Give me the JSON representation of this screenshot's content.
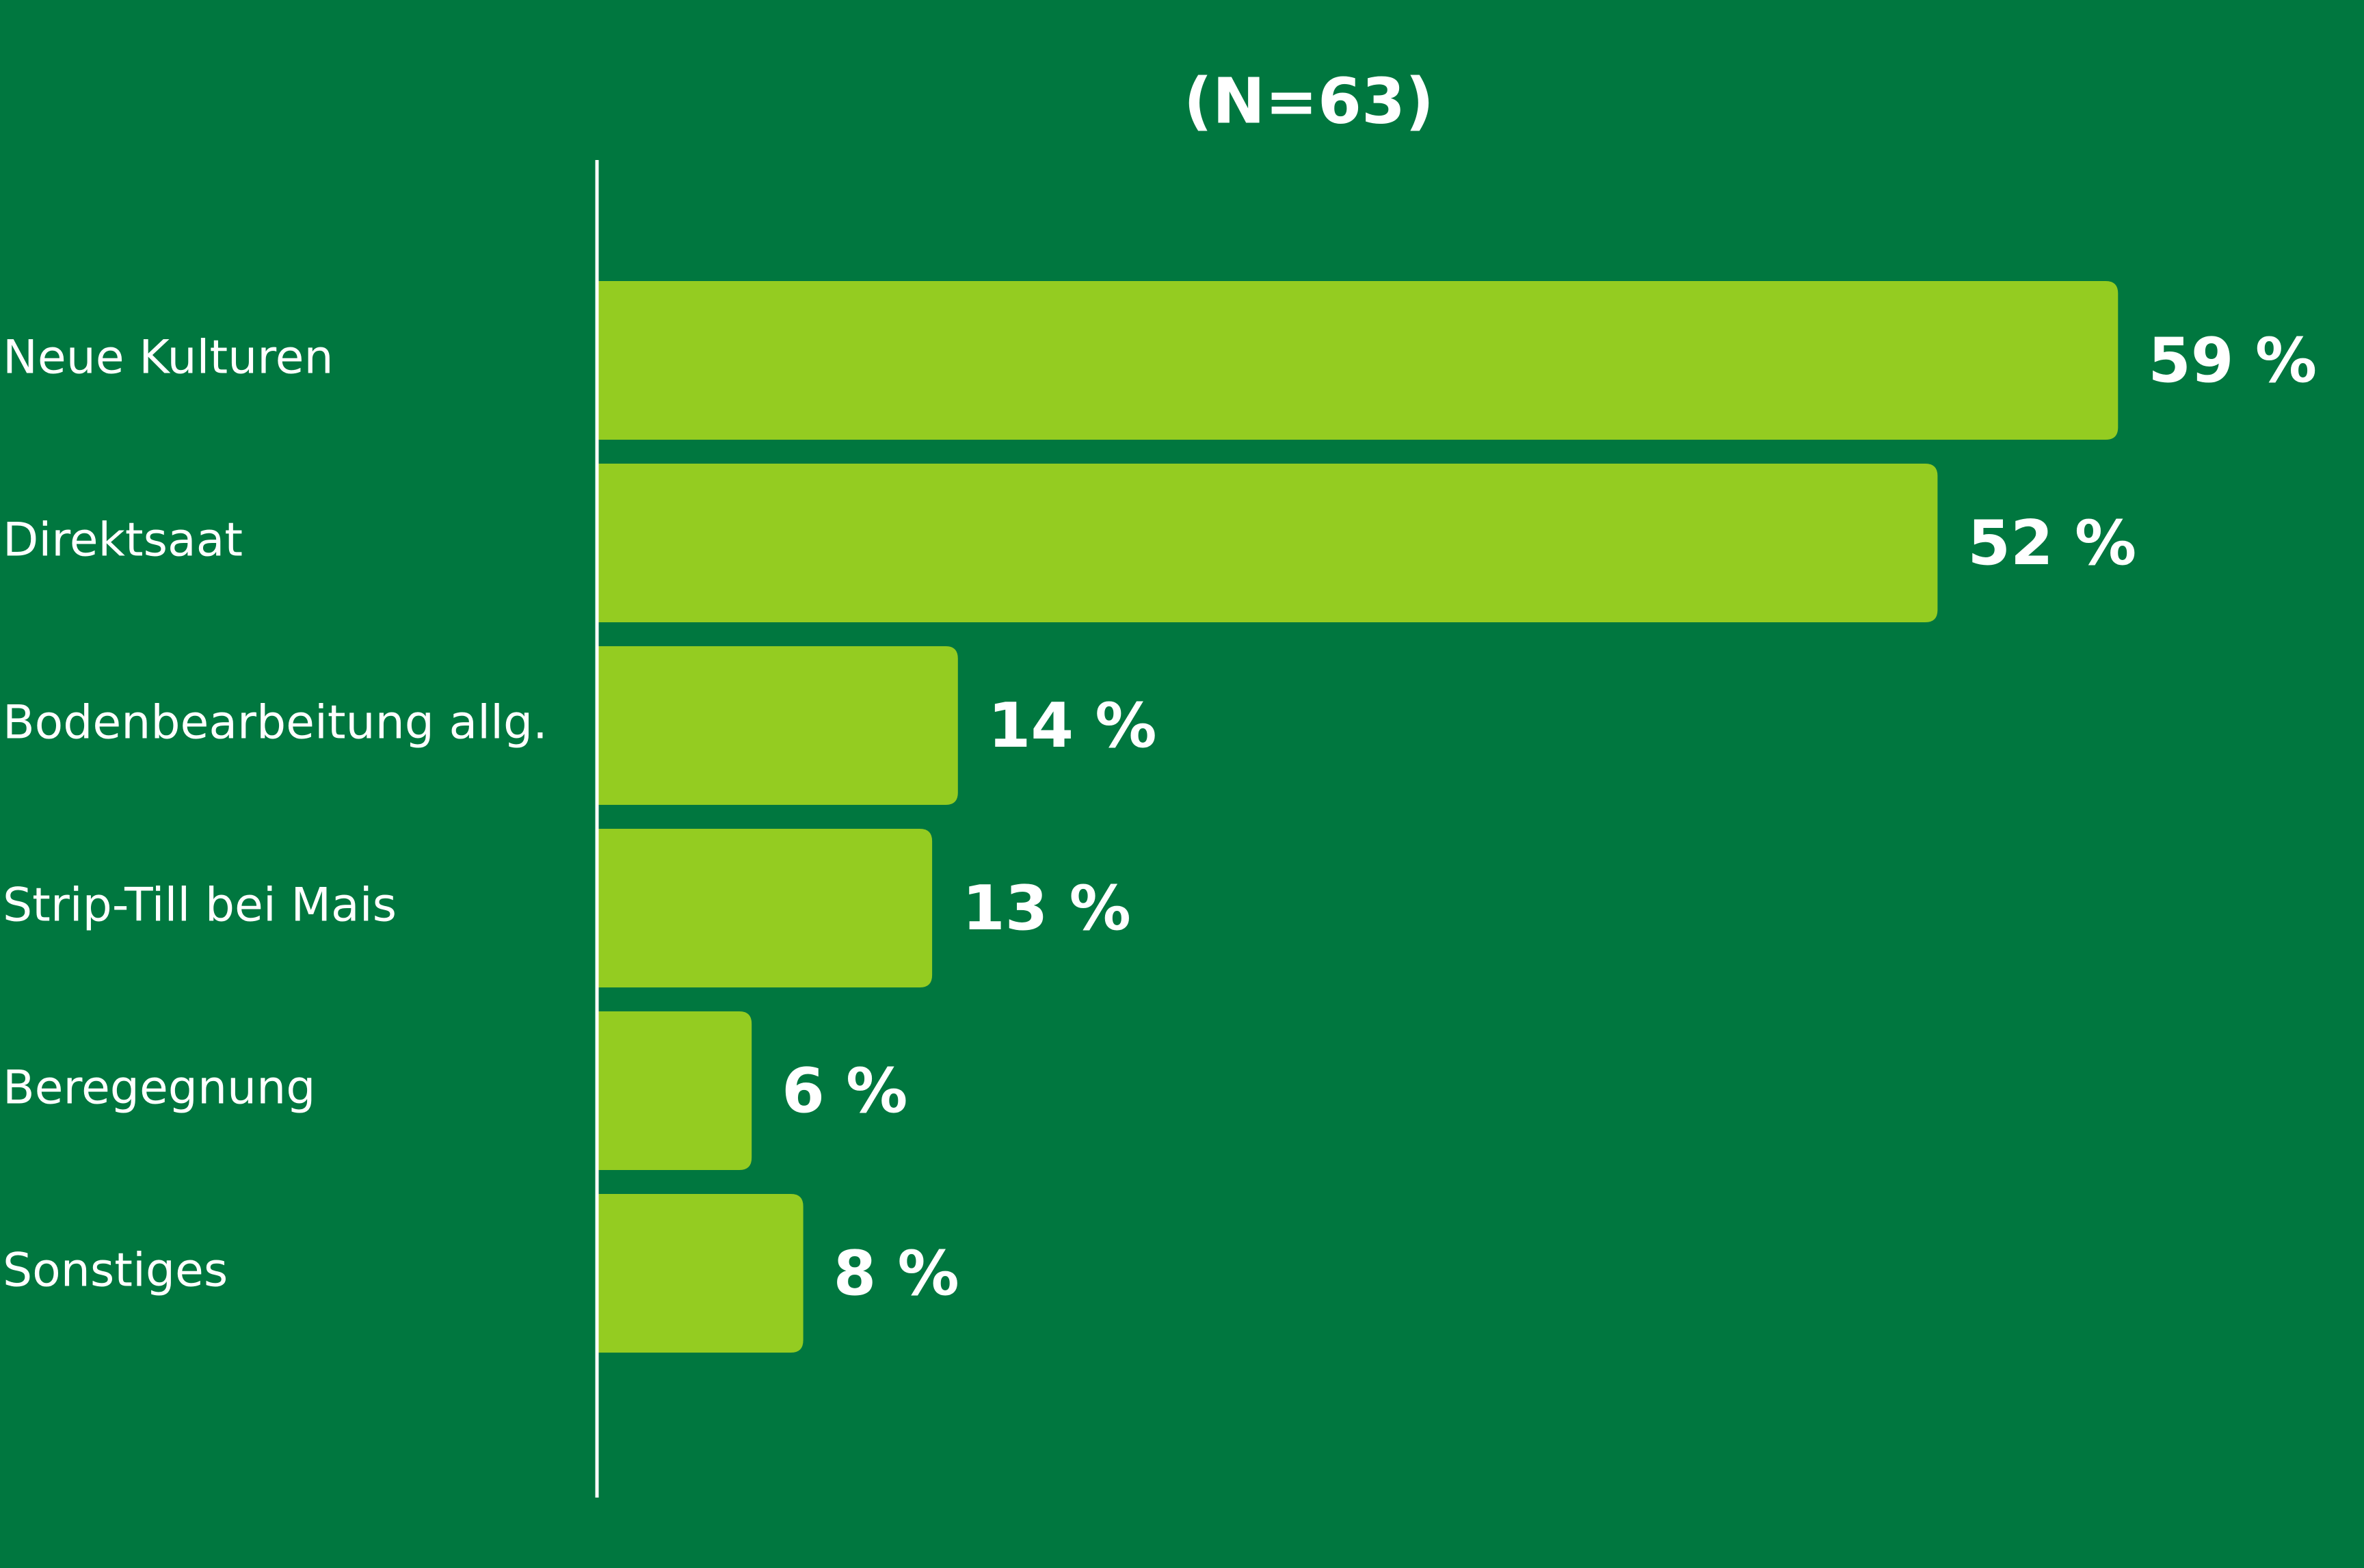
{
  "chart_data": {
    "type": "bar",
    "orientation": "horizontal",
    "title": "(N=63)",
    "categories": [
      "Neue Kulturen",
      "Direktsaat",
      "Bodenbearbeitung allg.",
      "Strip-Till bei Mais",
      "Beregegnung",
      "Sonstiges"
    ],
    "values": [
      59,
      52,
      14,
      13,
      6,
      8
    ],
    "value_labels": [
      "59 %",
      "52 %",
      "14 %",
      "13 %",
      "6 %",
      "8 %"
    ],
    "color": "#94cc21"
  }
}
